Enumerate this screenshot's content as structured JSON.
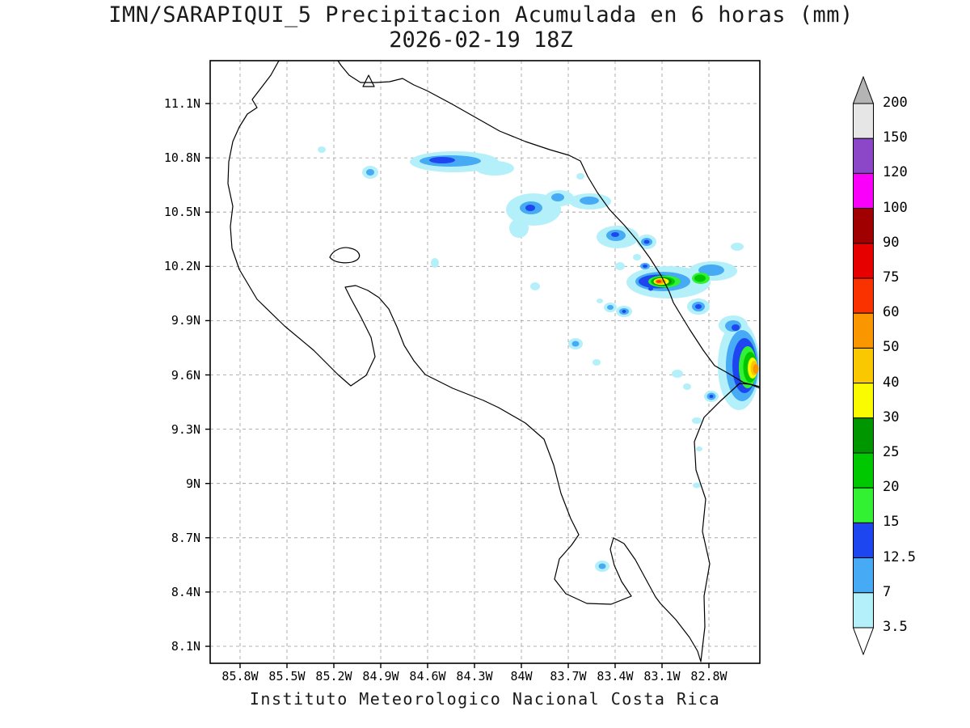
{
  "title": {
    "line1": "IMN/SARAPIQUI_5 Precipitacion Acumulada en 6 horas (mm)",
    "line2": "2026-02-19 18Z"
  },
  "footer": "Instituto Meteorologico Nacional Costa Rica",
  "axes": {
    "lat_ticks": [
      "11.1N",
      "10.8N",
      "10.5N",
      "10.2N",
      "9.9N",
      "9.6N",
      "9.3N",
      "9N",
      "8.7N",
      "8.4N",
      "8.1N"
    ],
    "lon_ticks": [
      "85.8W",
      "85.5W",
      "85.2W",
      "84.9W",
      "84.6W",
      "84.3W",
      "84W",
      "83.7W",
      "83.4W",
      "83.1W",
      "82.8W"
    ]
  },
  "colorbar": {
    "boundary_labels": [
      "3.5",
      "7",
      "12.5",
      "15",
      "20",
      "25",
      "30",
      "40",
      "50",
      "60",
      "75",
      "90",
      "100",
      "120",
      "150",
      "200"
    ],
    "band_colors": [
      "#b4f0fa",
      "#46aaf5",
      "#1e46f0",
      "#32f032",
      "#00c800",
      "#009600",
      "#fafa00",
      "#fac800",
      "#fa9600",
      "#fa3200",
      "#e60000",
      "#a00000",
      "#fa00fa",
      "#8c46c8",
      "#e6e6e6"
    ],
    "under_color": "#ffffff",
    "over_color": "#b4b4b4"
  },
  "chart_data": {
    "type": "heatmap",
    "title": "IMN/SARAPIQUI_5 Precipitacion Acumulada en 6 horas (mm)",
    "valid_time": "2026-02-19 18Z",
    "units": "mm",
    "region": "Costa Rica",
    "source_text": "Instituto Meteorologico Nacional Costa Rica",
    "lon_ticks_deg_w": [
      85.8,
      85.5,
      85.2,
      84.9,
      84.6,
      84.3,
      84.0,
      83.7,
      83.4,
      83.1,
      82.8
    ],
    "lat_ticks_deg_n": [
      11.1,
      10.8,
      10.5,
      10.2,
      9.9,
      9.6,
      9.3,
      9.0,
      8.7,
      8.4,
      8.1
    ],
    "lon_range_deg_w": [
      86.0,
      82.5
    ],
    "lat_range_deg_n": [
      8.0,
      11.35
    ],
    "contour_levels_mm": [
      3.5,
      7,
      12.5,
      15,
      20,
      25,
      30,
      40,
      50,
      60,
      75,
      90,
      100,
      120,
      150,
      200
    ],
    "grid": "dashed lat-lon grid every 0.3 deg",
    "legend_position": "right vertical colorbar with over/under arrow triangles",
    "precipitation_maxima": [
      {
        "lat_n": 10.75,
        "lon_w": 84.5,
        "peak_mm": "12.5-15",
        "note": "east-west rain band over northern plains"
      },
      {
        "lat_n": 10.7,
        "lon_w": 84.95,
        "peak_mm": "7-12.5",
        "note": "isolated cell"
      },
      {
        "lat_n": 10.45,
        "lon_w": 83.95,
        "peak_mm": "12.5-15",
        "note": "cluster of cells"
      },
      {
        "lat_n": 10.3,
        "lon_w": 83.65,
        "peak_mm": "12.5-15",
        "note": "cells approaching Caribbean coast"
      },
      {
        "lat_n": 10.12,
        "lon_w": 83.3,
        "peak_mm": "50-60",
        "note": "strongest inland maximum near Caribbean coast"
      },
      {
        "lat_n": 10.15,
        "lon_w": 83.05,
        "peak_mm": "20-25",
        "note": "green secondary core east of main maximum"
      },
      {
        "lat_n": 9.9,
        "lon_w": 83.35,
        "peak_mm": "12.5-15",
        "note": "small blue cells"
      },
      {
        "lat_n": 9.87,
        "lon_w": 82.95,
        "peak_mm": "12.5-15",
        "note": "blue cell"
      },
      {
        "lat_n": 9.65,
        "lon_w": 82.6,
        "peak_mm": "50-60",
        "note": "tall maximum clipped at eastern map edge"
      },
      {
        "lat_n": 9.72,
        "lon_w": 84.05,
        "peak_mm": "7-12.5",
        "note": "isolated cell"
      },
      {
        "lat_n": 9.45,
        "lon_w": 82.85,
        "peak_mm": "12.5-15",
        "note": "small cell"
      },
      {
        "lat_n": 8.5,
        "lon_w": 83.1,
        "peak_mm": "7-12.5",
        "note": "isolated southern cell"
      }
    ]
  }
}
